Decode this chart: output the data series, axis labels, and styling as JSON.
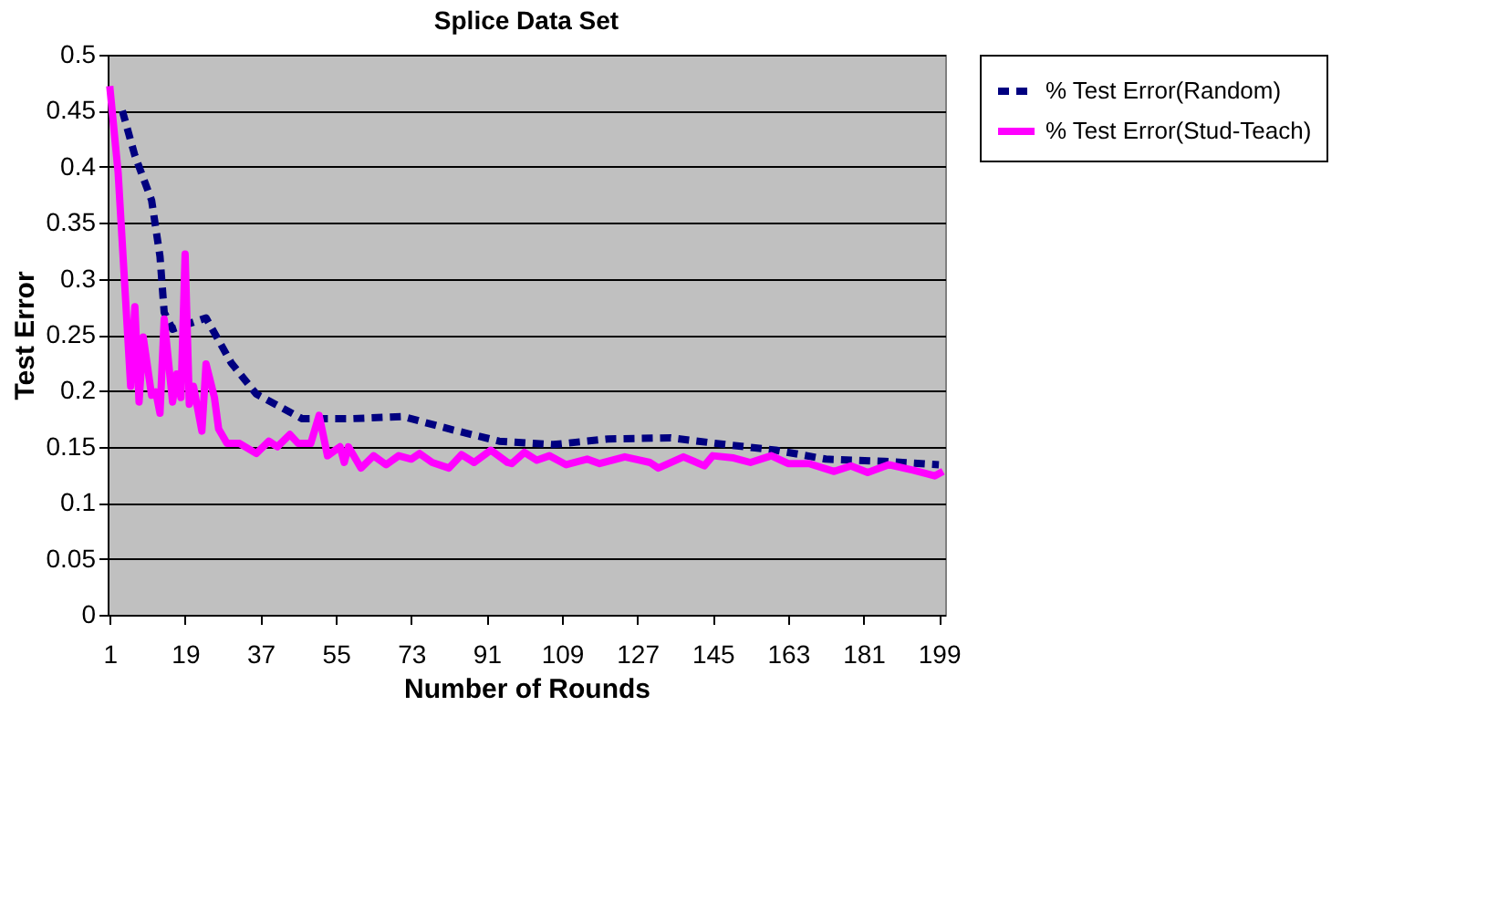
{
  "chart_data": {
    "type": "line",
    "title": "Splice Data Set",
    "xlabel": "Number of Rounds",
    "ylabel": "Test Error",
    "xlim": [
      0.5,
      200.5
    ],
    "xticks": [
      1,
      19,
      37,
      55,
      73,
      91,
      109,
      127,
      145,
      163,
      181,
      199
    ],
    "ylim": [
      0,
      0.5
    ],
    "yticks": [
      0,
      0.05,
      0.1,
      0.15,
      0.2,
      0.25,
      0.3,
      0.35,
      0.4,
      0.45,
      0.5
    ],
    "grid": "y",
    "legend": "right",
    "marker": "none",
    "series": [
      {
        "name": "% Test Error(Random)",
        "color": "#000080",
        "line_style": "dashed",
        "x": [
          4,
          7,
          11,
          13,
          14,
          16,
          24,
          30,
          36,
          47,
          58,
          71,
          83,
          94,
          107,
          120,
          135,
          148,
          160,
          172,
          186,
          199
        ],
        "values": [
          0.45,
          0.41,
          0.37,
          0.32,
          0.27,
          0.255,
          0.265,
          0.225,
          0.197,
          0.175,
          0.175,
          0.177,
          0.165,
          0.155,
          0.152,
          0.157,
          0.158,
          0.152,
          0.147,
          0.139,
          0.137,
          0.134
        ]
      },
      {
        "name": "% Test Error(Stud-Teach)",
        "color": "#ff00ff",
        "line_style": "solid",
        "x": [
          1,
          3,
          6,
          7,
          8,
          9,
          11,
          12,
          13,
          14,
          16,
          17,
          18,
          19,
          20,
          21,
          23,
          24,
          26,
          27,
          29,
          32,
          36,
          39,
          41,
          44,
          46,
          49,
          51,
          53,
          56,
          57,
          58,
          61,
          64,
          67,
          70,
          73,
          75,
          78,
          82,
          85,
          88,
          92,
          96,
          97,
          100,
          103,
          106,
          110,
          115,
          118,
          124,
          130,
          132,
          138,
          143,
          145,
          150,
          154,
          159,
          163,
          168,
          174,
          178,
          182,
          187,
          193,
          198,
          200
        ],
        "values": [
          0.472,
          0.395,
          0.204,
          0.275,
          0.19,
          0.248,
          0.196,
          0.199,
          0.18,
          0.264,
          0.19,
          0.215,
          0.194,
          0.322,
          0.188,
          0.204,
          0.164,
          0.224,
          0.194,
          0.166,
          0.153,
          0.153,
          0.144,
          0.155,
          0.15,
          0.161,
          0.153,
          0.153,
          0.178,
          0.142,
          0.15,
          0.136,
          0.15,
          0.131,
          0.142,
          0.134,
          0.142,
          0.139,
          0.144,
          0.136,
          0.131,
          0.143,
          0.136,
          0.147,
          0.136,
          0.135,
          0.145,
          0.138,
          0.142,
          0.134,
          0.139,
          0.135,
          0.141,
          0.136,
          0.131,
          0.141,
          0.133,
          0.142,
          0.14,
          0.136,
          0.142,
          0.135,
          0.135,
          0.128,
          0.133,
          0.127,
          0.134,
          0.129,
          0.124,
          0.128
        ]
      }
    ]
  }
}
